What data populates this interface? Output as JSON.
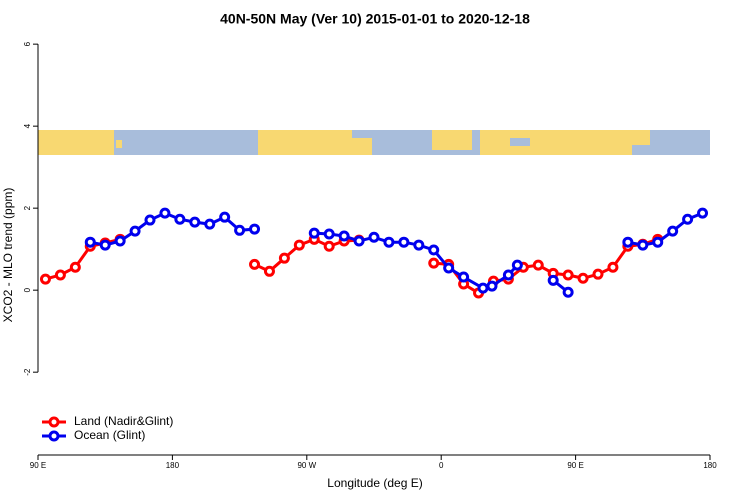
{
  "chart_data": {
    "type": "line",
    "title": "40N-50N May (Ver 10)   2015-01-01 to 2020-12-18",
    "xlabel": "Longitude (deg E)",
    "ylabel": "XCO2 - MLO trend (ppm)",
    "xlim": [
      90,
      540
    ],
    "xticks": [
      {
        "value": 90,
        "label": "90 E"
      },
      {
        "value": 180,
        "label": "180"
      },
      {
        "value": 270,
        "label": "90 W"
      },
      {
        "value": 360,
        "label": "0"
      },
      {
        "value": 450,
        "label": "90 E"
      },
      {
        "value": 540,
        "label": "180"
      }
    ],
    "ylim": [
      -4.02,
      6.15
    ],
    "yticks": [
      -2,
      0,
      2,
      4,
      6
    ],
    "legend": "bottom-left",
    "series": [
      {
        "name": "Land (Nadir&Glint)",
        "color": "#ff0000",
        "x": [
          95,
          105,
          115,
          125,
          135,
          145,
          null,
          235,
          245,
          255,
          265,
          275,
          285,
          295,
          305,
          null,
          355,
          365,
          375,
          385,
          395,
          405,
          415,
          425,
          435,
          445,
          455,
          465,
          475,
          485,
          495,
          505
        ],
        "values": [
          0.27,
          0.37,
          0.56,
          1.07,
          1.15,
          1.24,
          null,
          0.63,
          0.46,
          0.78,
          1.1,
          1.24,
          1.07,
          1.2,
          1.22,
          null,
          0.66,
          0.63,
          0.15,
          -0.07,
          0.22,
          0.27,
          0.56,
          0.61,
          0.41,
          0.37,
          0.29,
          0.39,
          0.56,
          1.07,
          1.12,
          1.24
        ]
      },
      {
        "name": "Ocean (Glint)",
        "color": "#0000ee",
        "x": [
          125,
          135,
          145,
          155,
          165,
          175,
          185,
          195,
          205,
          215,
          225,
          235,
          null,
          275,
          285,
          295,
          305,
          315,
          325,
          335,
          345,
          355,
          365,
          375,
          388,
          394,
          405,
          411,
          null,
          435,
          445,
          null,
          485,
          495,
          505,
          515,
          525,
          535
        ],
        "values": [
          1.17,
          1.1,
          1.2,
          1.44,
          1.71,
          1.88,
          1.73,
          1.66,
          1.61,
          1.78,
          1.46,
          1.49,
          null,
          1.39,
          1.37,
          1.32,
          1.2,
          1.29,
          1.17,
          1.17,
          1.1,
          0.98,
          0.54,
          0.32,
          0.05,
          0.1,
          0.37,
          0.61,
          null,
          0.24,
          -0.05,
          null,
          1.17,
          1.1,
          1.17,
          1.44,
          1.73,
          1.88
        ]
      }
    ]
  }
}
